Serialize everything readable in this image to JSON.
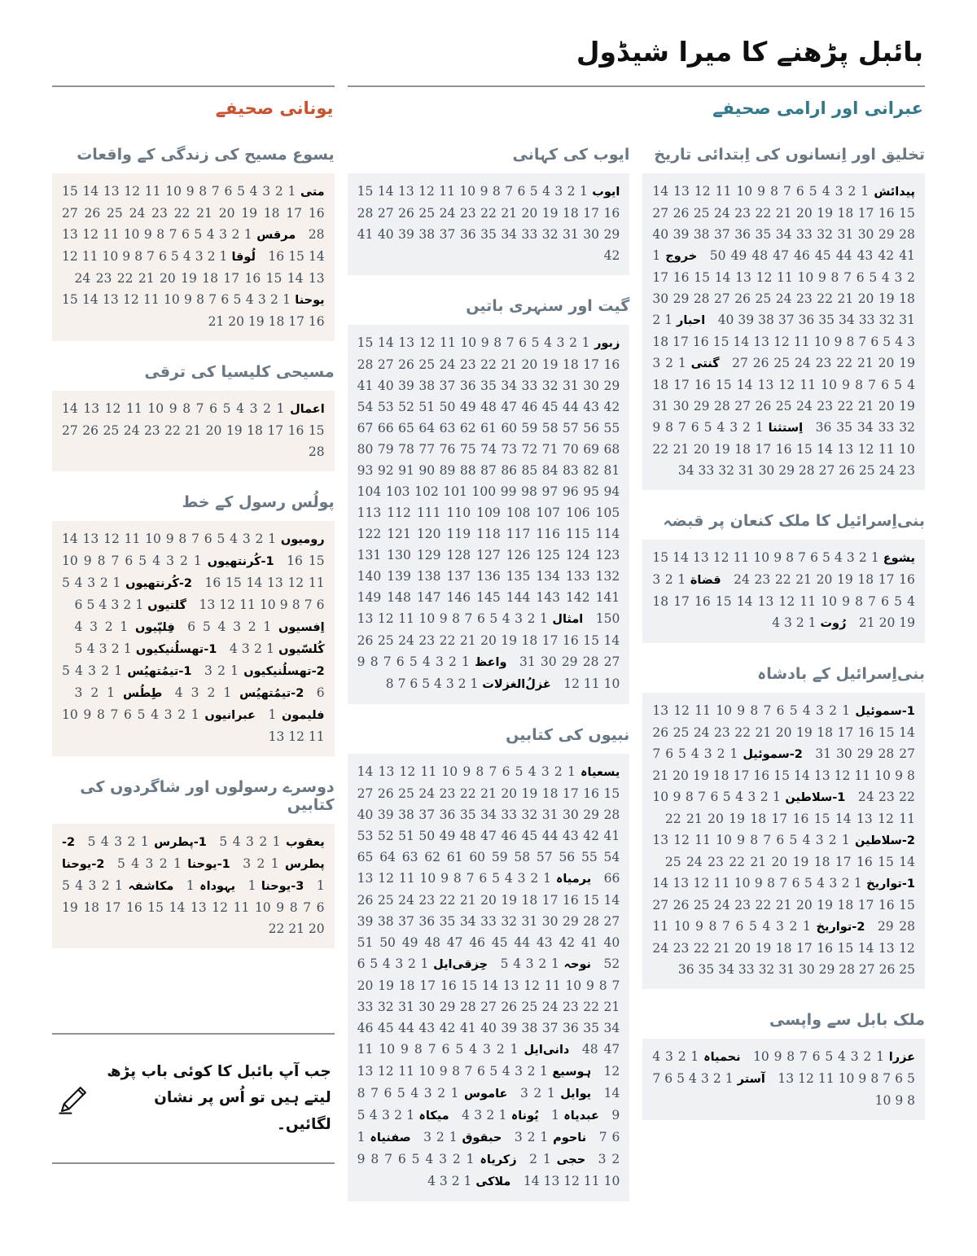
{
  "page_title": "بائبل پڑھنے کا میرا شیڈول",
  "groups": {
    "hebrew": {
      "label": "عبرانی اور ارامی صحیفے",
      "accent": "#33798a"
    },
    "greek": {
      "label": "یونانی صحیفے",
      "accent": "#c75330"
    }
  },
  "block_colors": {
    "cool": "#f0f1f5",
    "warm": "#f7f1ee"
  },
  "columns": [
    {
      "id": "hebrew-a",
      "tint": "cool",
      "sections": [
        {
          "heading": "تخلیق اور اِنسانوں کی اِبتدائی تاریخ",
          "books": [
            {
              "name": "پیدائش",
              "chapters": 50
            },
            {
              "name": "خروج",
              "chapters": 40
            },
            {
              "name": "احبار",
              "chapters": 27
            },
            {
              "name": "گنتی",
              "chapters": 36
            },
            {
              "name": "اِستثنا",
              "chapters": 34
            }
          ]
        },
        {
          "heading": "بنی‌اِسرائیل کا ملک کنعان پر قبضہ",
          "books": [
            {
              "name": "یشوع",
              "chapters": 24
            },
            {
              "name": "قضاة",
              "chapters": 21
            },
            {
              "name": "رُوت",
              "chapters": 4
            }
          ]
        },
        {
          "heading": "بنی‌اِسرائیل کے بادشاہ",
          "books": [
            {
              "name": "1-سموئیل",
              "chapters": 31
            },
            {
              "name": "2-سموئیل",
              "chapters": 24
            },
            {
              "name": "1-سلاطین",
              "chapters": 22
            },
            {
              "name": "2-سلاطین",
              "chapters": 25
            },
            {
              "name": "1-تواریخ",
              "chapters": 29
            },
            {
              "name": "2-تواریخ",
              "chapters": 36
            }
          ]
        },
        {
          "heading": "ملک بابل سے واپسی",
          "books": [
            {
              "name": "عزرا",
              "chapters": 10
            },
            {
              "name": "نحمیاہ",
              "chapters": 13
            },
            {
              "name": "آستر",
              "chapters": 10
            }
          ]
        }
      ]
    },
    {
      "id": "hebrew-b",
      "tint": "cool",
      "sections": [
        {
          "heading": "ایوب کی کہانی",
          "books": [
            {
              "name": "ایوب",
              "chapters": 42
            }
          ]
        },
        {
          "heading": "گیت اور سنہری باتیں",
          "books": [
            {
              "name": "زبور",
              "chapters": 150
            },
            {
              "name": "امثال",
              "chapters": 31
            },
            {
              "name": "واعظ",
              "chapters": 12
            },
            {
              "name": "غزلُ‌الغزلات",
              "chapters": 8
            }
          ]
        },
        {
          "heading": "نبیوں کی کتابیں",
          "books": [
            {
              "name": "یسعیاہ",
              "chapters": 66
            },
            {
              "name": "یرمیاہ",
              "chapters": 52
            },
            {
              "name": "نوحہ",
              "chapters": 5
            },
            {
              "name": "حِزقی‌ایل",
              "chapters": 48
            },
            {
              "name": "دانی‌ایل",
              "chapters": 12
            },
            {
              "name": "ہوسیع",
              "chapters": 14
            },
            {
              "name": "یوایل",
              "chapters": 3
            },
            {
              "name": "عاموس",
              "chapters": 9
            },
            {
              "name": "عبدیاہ",
              "chapters": 1
            },
            {
              "name": "یُوناہ",
              "chapters": 4
            },
            {
              "name": "میکاہ",
              "chapters": 7
            },
            {
              "name": "ناحوم",
              "chapters": 3
            },
            {
              "name": "حبقوق",
              "chapters": 3
            },
            {
              "name": "صفنیاہ",
              "chapters": 3
            },
            {
              "name": "حجی",
              "chapters": 2
            },
            {
              "name": "زکریاہ",
              "chapters": 14
            },
            {
              "name": "ملاکی",
              "chapters": 4
            }
          ]
        }
      ]
    },
    {
      "id": "greek",
      "tint": "warm",
      "sections": [
        {
          "heading": "یسوع مسیح کی زندگی کے واقعات",
          "books": [
            {
              "name": "متی",
              "chapters": 28
            },
            {
              "name": "مرقس",
              "chapters": 16
            },
            {
              "name": "لُوقا",
              "chapters": 24
            },
            {
              "name": "یوحنا",
              "chapters": 21
            }
          ]
        },
        {
          "heading": "مسیحی کلیسیا کی ترقی",
          "books": [
            {
              "name": "اعمال",
              "chapters": 28
            }
          ]
        },
        {
          "heading": "پولُس رسول کے خط",
          "books": [
            {
              "name": "رومیوں",
              "chapters": 16
            },
            {
              "name": "1-کُرنتھیوں",
              "chapters": 16
            },
            {
              "name": "2-کُرنتھیوں",
              "chapters": 13
            },
            {
              "name": "گلتیوں",
              "chapters": 6
            },
            {
              "name": "اِفسیوں",
              "chapters": 6
            },
            {
              "name": "فِلپّیوں",
              "chapters": 4
            },
            {
              "name": "کُلسّیوں",
              "chapters": 4
            },
            {
              "name": "1-تھسلُنیکیوں",
              "chapters": 5
            },
            {
              "name": "2-تھسلُنیکیوں",
              "chapters": 3
            },
            {
              "name": "1-تیمُتھیُس",
              "chapters": 6
            },
            {
              "name": "2-تیمُتھیُس",
              "chapters": 4
            },
            {
              "name": "طِطُس",
              "chapters": 3
            },
            {
              "name": "فلیمون",
              "chapters": 1
            },
            {
              "name": "عبرانیوں",
              "chapters": 13
            }
          ]
        },
        {
          "heading": "دوسرے رسولوں اور شاگردوں کی کتابیں",
          "books": [
            {
              "name": "یعقوب",
              "chapters": 5
            },
            {
              "name": "1-پطرس",
              "chapters": 5
            },
            {
              "name": "2-پطرس",
              "chapters": 3
            },
            {
              "name": "1-یوحنا",
              "chapters": 5
            },
            {
              "name": "2-یوحنا",
              "chapters": 1
            },
            {
              "name": "3-یوحنا",
              "chapters": 1
            },
            {
              "name": "یہوداہ",
              "chapters": 1
            },
            {
              "name": "مکاشفہ",
              "chapters": 22
            }
          ]
        }
      ]
    }
  ],
  "note": {
    "text": "جب آپ بائبل کا کوئی باب پڑھ لیتے ہیں تو اُس پر نشان لگائیں۔",
    "icon": "pencil-icon"
  }
}
